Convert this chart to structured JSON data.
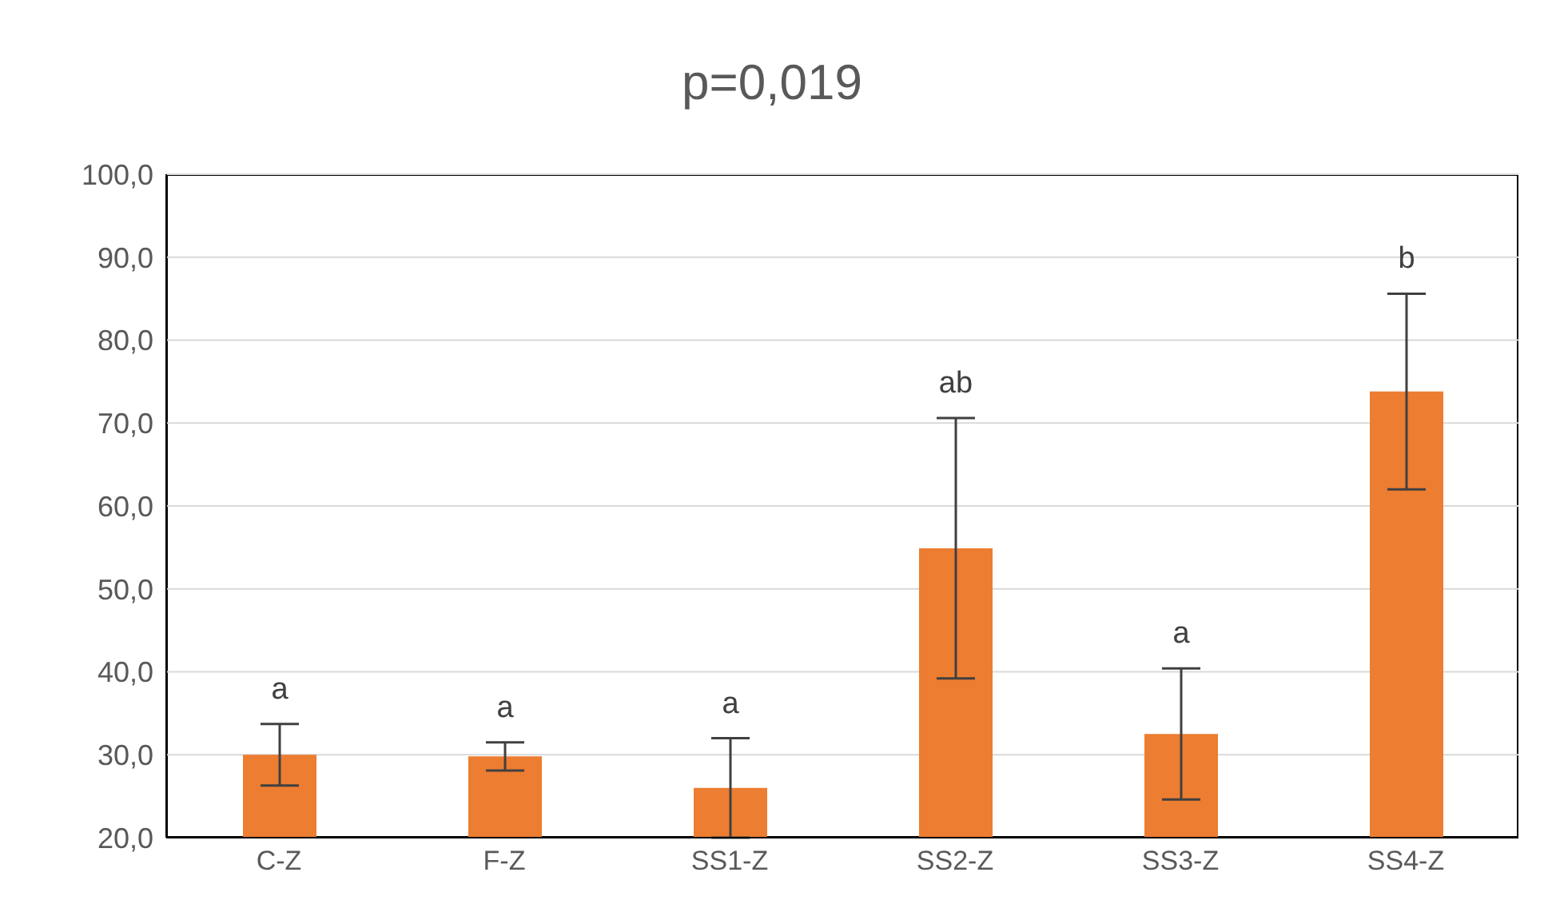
{
  "chart_data": {
    "type": "bar",
    "title": "p=0,019",
    "categories": [
      "C-Z",
      "F-Z",
      "SS1-Z",
      "SS2-Z",
      "SS3-Z",
      "SS4-Z"
    ],
    "values": [
      30.0,
      29.8,
      26.0,
      54.9,
      32.5,
      73.8
    ],
    "errors": [
      3.7,
      1.7,
      6.0,
      15.7,
      7.9,
      11.8
    ],
    "color": "#ed7d31",
    "ylim": [
      20,
      100
    ],
    "yticks": [
      {
        "value": 20,
        "label": "20,0"
      },
      {
        "value": 30,
        "label": "30,0"
      },
      {
        "value": 40,
        "label": "40,0"
      },
      {
        "value": 50,
        "label": "50,0"
      },
      {
        "value": 60,
        "label": "60,0"
      },
      {
        "value": 70,
        "label": "70,0"
      },
      {
        "value": 80,
        "label": "80,0"
      },
      {
        "value": 90,
        "label": "90,0"
      },
      {
        "value": 100,
        "label": "100,0"
      }
    ],
    "grid": "y",
    "annotations": [
      "a",
      "a",
      "a",
      "ab",
      "a",
      "b"
    ]
  }
}
